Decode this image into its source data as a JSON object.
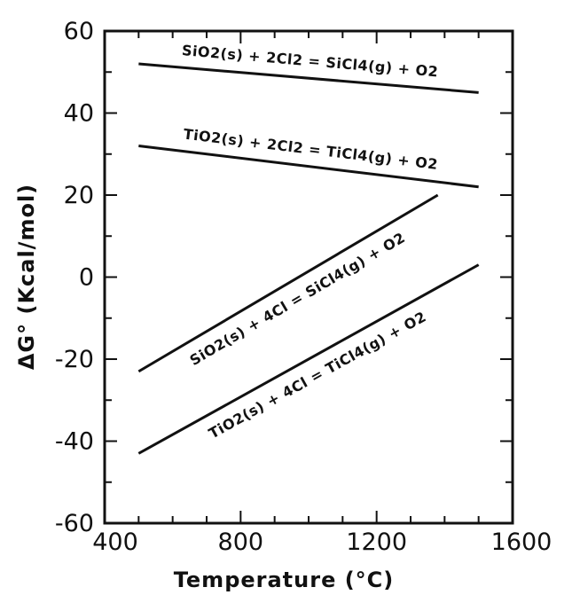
{
  "chart_data": {
    "type": "line",
    "title": "",
    "xlabel": "Temperature (°C)",
    "ylabel": "ΔG° (Kcal/mol)",
    "xlim": [
      400,
      1600
    ],
    "ylim": [
      -60,
      60
    ],
    "xticks": [
      "400",
      "800",
      "1200",
      "1600"
    ],
    "yticks": [
      "60",
      "40",
      "20",
      "0",
      "-20",
      "-40",
      "-60"
    ],
    "grid": false,
    "series": [
      {
        "name": "SiO2(s) + 2Cl2 = SiCl4(g) + O2",
        "x": [
          500,
          1500
        ],
        "y": [
          52,
          45
        ]
      },
      {
        "name": "TiO2(s) + 2Cl2 = TiCl4(g) + O2",
        "x": [
          500,
          1500
        ],
        "y": [
          32,
          22
        ]
      },
      {
        "name": "SiO2(s) + 4Cl = SiCl4(g) + O2",
        "x": [
          500,
          1380
        ],
        "y": [
          -23,
          20
        ]
      },
      {
        "name": "TiO2(s) + 4Cl = TiCl4(g) + O2",
        "x": [
          500,
          1500
        ],
        "y": [
          -43,
          3
        ]
      }
    ]
  }
}
